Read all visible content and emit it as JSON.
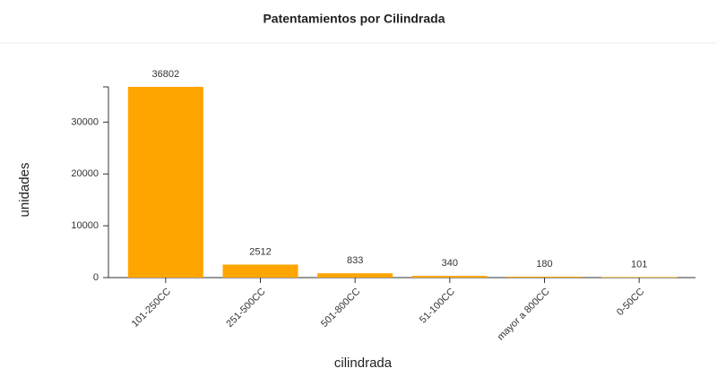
{
  "chart_data": {
    "type": "bar",
    "title": "Patentamientos por Cilindrada",
    "x_label": "cilindrada",
    "y_label": "unidades",
    "categories": [
      "101-250CC",
      "251-500CC",
      "501-800CC",
      "51-100CC",
      "mayor a 800CC",
      "0-50CC"
    ],
    "values": [
      36802,
      2512,
      833,
      340,
      180,
      101
    ],
    "color": "#ffa500",
    "ylim": [
      0,
      36802
    ],
    "yticks": [
      0,
      10000,
      20000,
      30000
    ]
  }
}
